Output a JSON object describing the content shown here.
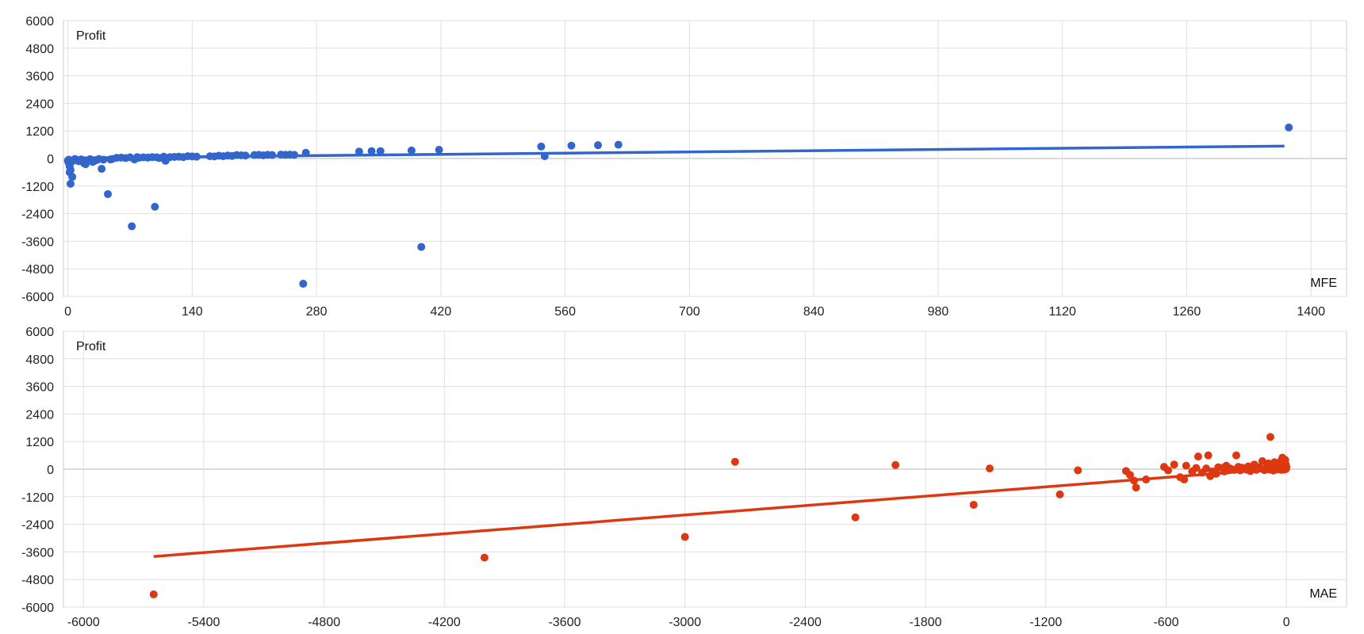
{
  "chart_data": [
    {
      "type": "scatter",
      "xlabel": "MFE",
      "ylabel": "Profit",
      "xlim": [
        -5,
        1440
      ],
      "ylim": [
        -6000,
        6000
      ],
      "xticks": [
        0,
        140,
        280,
        420,
        560,
        700,
        840,
        980,
        1120,
        1260,
        1400
      ],
      "yticks": [
        -6000,
        -4800,
        -3600,
        -2400,
        -1200,
        0,
        1200,
        2400,
        3600,
        4800,
        6000
      ],
      "grid": true,
      "colors": {
        "points": "#3366cc",
        "trend": "#3366cc"
      },
      "trendline": {
        "x": [
          0,
          1370
        ],
        "y": [
          20,
          540
        ]
      },
      "points": [
        [
          0,
          -100
        ],
        [
          1,
          -200
        ],
        [
          2,
          -350
        ],
        [
          3,
          -500
        ],
        [
          2,
          -600
        ],
        [
          5,
          -800
        ],
        [
          3,
          -1100
        ],
        [
          1,
          -50
        ],
        [
          4,
          -150
        ],
        [
          6,
          -80
        ],
        [
          8,
          -20
        ],
        [
          10,
          -60
        ],
        [
          12,
          -120
        ],
        [
          15,
          -40
        ],
        [
          18,
          -200
        ],
        [
          20,
          -250
        ],
        [
          22,
          -90
        ],
        [
          25,
          -30
        ],
        [
          28,
          -150
        ],
        [
          30,
          -100
        ],
        [
          33,
          -60
        ],
        [
          35,
          -20
        ],
        [
          38,
          -450
        ],
        [
          40,
          -50
        ],
        [
          45,
          -1550
        ],
        [
          48,
          -40
        ],
        [
          50,
          -20
        ],
        [
          55,
          30
        ],
        [
          60,
          40
        ],
        [
          65,
          20
        ],
        [
          70,
          50
        ],
        [
          72,
          -2950
        ],
        [
          75,
          -40
        ],
        [
          78,
          60
        ],
        [
          80,
          30
        ],
        [
          85,
          50
        ],
        [
          90,
          40
        ],
        [
          95,
          60
        ],
        [
          98,
          -2100
        ],
        [
          100,
          50
        ],
        [
          103,
          20
        ],
        [
          108,
          80
        ],
        [
          110,
          -100
        ],
        [
          115,
          60
        ],
        [
          120,
          70
        ],
        [
          125,
          80
        ],
        [
          130,
          60
        ],
        [
          135,
          100
        ],
        [
          140,
          90
        ],
        [
          145,
          80
        ],
        [
          160,
          100
        ],
        [
          165,
          90
        ],
        [
          170,
          120
        ],
        [
          175,
          100
        ],
        [
          180,
          130
        ],
        [
          185,
          110
        ],
        [
          190,
          150
        ],
        [
          195,
          140
        ],
        [
          200,
          130
        ],
        [
          210,
          150
        ],
        [
          215,
          160
        ],
        [
          220,
          140
        ],
        [
          225,
          160
        ],
        [
          230,
          150
        ],
        [
          240,
          170
        ],
        [
          245,
          160
        ],
        [
          250,
          170
        ],
        [
          255,
          160
        ],
        [
          265,
          -5450
        ],
        [
          268,
          250
        ],
        [
          328,
          300
        ],
        [
          342,
          320
        ],
        [
          352,
          320
        ],
        [
          387,
          350
        ],
        [
          398,
          -3850
        ],
        [
          418,
          380
        ],
        [
          533,
          520
        ],
        [
          537,
          100
        ],
        [
          567,
          560
        ],
        [
          597,
          580
        ],
        [
          620,
          600
        ],
        [
          1375,
          1350
        ]
      ]
    },
    {
      "type": "scatter",
      "xlabel": "MAE",
      "ylabel": "Profit",
      "xlim": [
        -6100,
        300
      ],
      "ylim": [
        -6000,
        6000
      ],
      "xticks": [
        -6000,
        -5400,
        -4800,
        -4200,
        -3600,
        -3000,
        -2400,
        -1800,
        -1200,
        -600,
        0
      ],
      "yticks": [
        -6000,
        -4800,
        -3600,
        -2400,
        -1200,
        0,
        1200,
        2400,
        3600,
        4800,
        6000
      ],
      "grid": true,
      "colors": {
        "points": "#dc3912",
        "trend": "#dc3912"
      },
      "trendline": {
        "x": [
          -5650,
          0
        ],
        "y": [
          -3800,
          50
        ]
      },
      "points": [
        [
          -5650,
          -5450
        ],
        [
          -4000,
          -3850
        ],
        [
          -3000,
          -2950
        ],
        [
          -2750,
          320
        ],
        [
          -2150,
          -2100
        ],
        [
          -1950,
          180
        ],
        [
          -1560,
          -1550
        ],
        [
          -1480,
          30
        ],
        [
          -1130,
          -1100
        ],
        [
          -1040,
          -50
        ],
        [
          -800,
          -80
        ],
        [
          -780,
          -250
        ],
        [
          -760,
          -500
        ],
        [
          -750,
          -800
        ],
        [
          -700,
          -450
        ],
        [
          -610,
          100
        ],
        [
          -590,
          -50
        ],
        [
          -560,
          200
        ],
        [
          -530,
          -350
        ],
        [
          -510,
          -450
        ],
        [
          -500,
          150
        ],
        [
          -470,
          -100
        ],
        [
          -450,
          50
        ],
        [
          -440,
          550
        ],
        [
          -420,
          -150
        ],
        [
          -400,
          30
        ],
        [
          -390,
          600
        ],
        [
          -380,
          -300
        ],
        [
          -370,
          -100
        ],
        [
          -350,
          -200
        ],
        [
          -340,
          80
        ],
        [
          -320,
          50
        ],
        [
          -310,
          -100
        ],
        [
          -300,
          150
        ],
        [
          -290,
          -50
        ],
        [
          -280,
          30
        ],
        [
          -260,
          -30
        ],
        [
          -250,
          600
        ],
        [
          -240,
          100
        ],
        [
          -230,
          -50
        ],
        [
          -220,
          60
        ],
        [
          -200,
          -20
        ],
        [
          -190,
          120
        ],
        [
          -180,
          -80
        ],
        [
          -170,
          50
        ],
        [
          -160,
          200
        ],
        [
          -150,
          -30
        ],
        [
          -140,
          80
        ],
        [
          -130,
          30
        ],
        [
          -120,
          350
        ],
        [
          -110,
          -40
        ],
        [
          -100,
          60
        ],
        [
          -95,
          150
        ],
        [
          -90,
          250
        ],
        [
          -85,
          -20
        ],
        [
          -80,
          1400
        ],
        [
          -75,
          100
        ],
        [
          -70,
          40
        ],
        [
          -65,
          -60
        ],
        [
          -60,
          300
        ],
        [
          -55,
          80
        ],
        [
          -50,
          30
        ],
        [
          -45,
          -10
        ],
        [
          -40,
          120
        ],
        [
          -35,
          200
        ],
        [
          -30,
          50
        ],
        [
          -28,
          350
        ],
        [
          -25,
          -30
        ],
        [
          -22,
          100
        ],
        [
          -20,
          500
        ],
        [
          -18,
          20
        ],
        [
          -15,
          250
        ],
        [
          -12,
          80
        ],
        [
          -10,
          -20
        ],
        [
          -8,
          150
        ],
        [
          -6,
          400
        ],
        [
          -4,
          60
        ],
        [
          -3,
          200
        ],
        [
          -2,
          10
        ],
        [
          0,
          100
        ]
      ]
    }
  ]
}
